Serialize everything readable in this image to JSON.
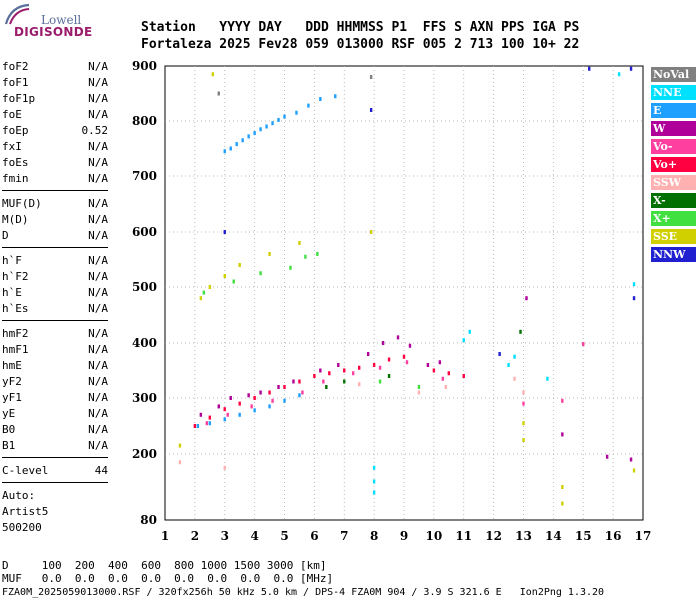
{
  "logo": {
    "top": "Lowell",
    "bottom": "DIGISONDE"
  },
  "header": {
    "line1": "Station   YYYY DAY   DDD HHMMSS P1  FFS S AXN PPS IGA PS",
    "line2": "Fortaleza 2025 Fev28 059 013000 RSF 005 2 713 100 10+ 22"
  },
  "params_group1": [
    {
      "name": "foF2",
      "value": "N/A"
    },
    {
      "name": "foF1",
      "value": "N/A"
    },
    {
      "name": "foF1p",
      "value": "N/A"
    },
    {
      "name": "foE",
      "value": "N/A"
    },
    {
      "name": "foEp",
      "value": "0.52"
    },
    {
      "name": "fxI",
      "value": "N/A"
    },
    {
      "name": "foEs",
      "value": "N/A"
    },
    {
      "name": "fmin",
      "value": "N/A"
    }
  ],
  "params_group2": [
    {
      "name": "MUF(D)",
      "value": "N/A"
    },
    {
      "name": "M(D)",
      "value": "N/A"
    },
    {
      "name": "D",
      "value": "N/A"
    }
  ],
  "params_group3": [
    {
      "name": "h`F",
      "value": "N/A"
    },
    {
      "name": "h`F2",
      "value": "N/A"
    },
    {
      "name": "h`E",
      "value": "N/A"
    },
    {
      "name": "h`Es",
      "value": "N/A"
    }
  ],
  "params_group4": [
    {
      "name": "hmF2",
      "value": "N/A"
    },
    {
      "name": "hmF1",
      "value": "N/A"
    },
    {
      "name": "hmE",
      "value": "N/A"
    },
    {
      "name": "yF2",
      "value": "N/A"
    },
    {
      "name": "yF1",
      "value": "N/A"
    },
    {
      "name": "yE",
      "value": "N/A"
    },
    {
      "name": "B0",
      "value": "N/A"
    },
    {
      "name": "B1",
      "value": "N/A"
    }
  ],
  "clevel": {
    "name": "C-level",
    "value": "44"
  },
  "auto": {
    "line1": "Auto:",
    "line2": "Artist5",
    "line3": "500200"
  },
  "legend": [
    {
      "label": "NoVal",
      "bg": "#808080",
      "fg": "#ffffff"
    },
    {
      "label": "NNE",
      "bg": "#00e0ff",
      "fg": "#ffffff"
    },
    {
      "label": "E",
      "bg": "#1fa0ff",
      "fg": "#ffffff"
    },
    {
      "label": "W",
      "bg": "#b0009a",
      "fg": "#ffffff"
    },
    {
      "label": "Vo-",
      "bg": "#ff3fa0",
      "fg": "#ffffff"
    },
    {
      "label": "Vo+",
      "bg": "#ff0040",
      "fg": "#ffffff"
    },
    {
      "label": "SSW",
      "bg": "#ffb0b0",
      "fg": "#ffffff"
    },
    {
      "label": "X-",
      "bg": "#007000",
      "fg": "#ffffff"
    },
    {
      "label": "X+",
      "bg": "#40e040",
      "fg": "#ffffff"
    },
    {
      "label": "SSE",
      "bg": "#d0d000",
      "fg": "#ffffff"
    },
    {
      "label": "NNW",
      "bg": "#2020d0",
      "fg": "#ffffff"
    }
  ],
  "footer": {
    "d_row": "D     100  200  400  600  800 1000 1500 3000 [km]",
    "muf_row": "MUF   0.0  0.0  0.0  0.0  0.0  0.0  0.0  0.0 [MHz]",
    "file_row": "FZA0M_2025059013000.RSF / 320fx256h 50 kHz 5.0 km / DPS-4 FZA0M 904 / 3.9 S 321.6 E   Ion2Png 1.3.20"
  },
  "chart_data": {
    "type": "scatter",
    "x_ticks": [
      "1",
      "2",
      "3",
      "4",
      "5",
      "6",
      "7",
      "8",
      "9",
      "10",
      "11",
      "12",
      "13",
      "14",
      "15",
      "16",
      "17"
    ],
    "y_ticks": [
      "80",
      "200",
      "300",
      "400",
      "500",
      "600",
      "700",
      "800",
      "900"
    ],
    "xlim": [
      1,
      17
    ],
    "ylim": [
      80,
      900
    ],
    "grid": true,
    "legend_position": "right",
    "series": [
      {
        "name": "E",
        "color": "#1fa0ff",
        "points": [
          [
            3.0,
            745
          ],
          [
            3.2,
            750
          ],
          [
            3.4,
            758
          ],
          [
            3.6,
            765
          ],
          [
            3.8,
            772
          ],
          [
            4.0,
            778
          ],
          [
            4.2,
            785
          ],
          [
            4.4,
            790
          ],
          [
            4.6,
            796
          ],
          [
            4.8,
            802
          ],
          [
            5.0,
            808
          ],
          [
            5.4,
            815
          ],
          [
            5.8,
            828
          ],
          [
            6.2,
            840
          ],
          [
            6.7,
            845
          ],
          [
            2.1,
            250
          ],
          [
            2.5,
            255
          ],
          [
            3.0,
            262
          ],
          [
            3.5,
            270
          ],
          [
            4.0,
            278
          ],
          [
            4.5,
            285
          ],
          [
            5.0,
            295
          ],
          [
            5.5,
            305
          ]
        ]
      },
      {
        "name": "Vo+",
        "color": "#ff0040",
        "points": [
          [
            2.0,
            250
          ],
          [
            2.5,
            265
          ],
          [
            3.0,
            280
          ],
          [
            3.5,
            290
          ],
          [
            4.0,
            300
          ],
          [
            4.5,
            310
          ],
          [
            5.0,
            320
          ],
          [
            5.5,
            330
          ],
          [
            6.0,
            340
          ],
          [
            6.5,
            345
          ],
          [
            7.0,
            350
          ],
          [
            7.5,
            355
          ],
          [
            8.0,
            360
          ],
          [
            8.5,
            370
          ],
          [
            9.0,
            375
          ],
          [
            10.0,
            350
          ],
          [
            10.5,
            345
          ],
          [
            11.0,
            340
          ]
        ]
      },
      {
        "name": "W",
        "color": "#b0009a",
        "points": [
          [
            2.2,
            270
          ],
          [
            2.8,
            285
          ],
          [
            3.2,
            300
          ],
          [
            3.8,
            305
          ],
          [
            4.2,
            310
          ],
          [
            4.8,
            320
          ],
          [
            5.3,
            330
          ],
          [
            6.2,
            350
          ],
          [
            6.8,
            360
          ],
          [
            7.8,
            380
          ],
          [
            8.3,
            400
          ],
          [
            8.8,
            410
          ],
          [
            9.2,
            395
          ],
          [
            9.8,
            360
          ],
          [
            10.2,
            365
          ],
          [
            13.1,
            480
          ],
          [
            14.3,
            235
          ],
          [
            15.8,
            195
          ],
          [
            16.6,
            190
          ]
        ]
      },
      {
        "name": "Vo-",
        "color": "#ff3fa0",
        "points": [
          [
            2.4,
            255
          ],
          [
            3.1,
            270
          ],
          [
            3.9,
            285
          ],
          [
            4.6,
            295
          ],
          [
            5.6,
            310
          ],
          [
            6.3,
            330
          ],
          [
            7.3,
            345
          ],
          [
            8.2,
            355
          ],
          [
            9.1,
            365
          ],
          [
            10.3,
            335
          ],
          [
            13.0,
            290
          ],
          [
            14.3,
            295
          ],
          [
            15.0,
            398
          ]
        ]
      },
      {
        "name": "NNE",
        "color": "#00e0ff",
        "points": [
          [
            8.0,
            150
          ],
          [
            8.0,
            130
          ],
          [
            8.0,
            175
          ],
          [
            11.0,
            405
          ],
          [
            11.2,
            420
          ],
          [
            12.5,
            360
          ],
          [
            12.7,
            375
          ],
          [
            13.8,
            335
          ],
          [
            16.2,
            885
          ],
          [
            16.7,
            505
          ]
        ]
      },
      {
        "name": "SSE",
        "color": "#d0d000",
        "points": [
          [
            1.5,
            215
          ],
          [
            2.6,
            885
          ],
          [
            2.2,
            480
          ],
          [
            2.5,
            500
          ],
          [
            3.0,
            520
          ],
          [
            3.5,
            540
          ],
          [
            4.5,
            560
          ],
          [
            5.5,
            580
          ],
          [
            7.9,
            600
          ],
          [
            13.0,
            255
          ],
          [
            13.0,
            225
          ],
          [
            14.3,
            140
          ],
          [
            14.3,
            110
          ],
          [
            16.7,
            170
          ]
        ]
      },
      {
        "name": "X+",
        "color": "#40e040",
        "points": [
          [
            2.3,
            490
          ],
          [
            3.3,
            510
          ],
          [
            4.2,
            525
          ],
          [
            5.2,
            535
          ],
          [
            5.7,
            555
          ],
          [
            6.1,
            560
          ],
          [
            8.2,
            330
          ],
          [
            9.5,
            320
          ]
        ]
      },
      {
        "name": "X-",
        "color": "#007000",
        "points": [
          [
            6.4,
            320
          ],
          [
            7.0,
            330
          ],
          [
            8.5,
            340
          ],
          [
            12.9,
            420
          ]
        ]
      },
      {
        "name": "SSW",
        "color": "#ffb0b0",
        "points": [
          [
            1.5,
            185
          ],
          [
            3.0,
            175
          ],
          [
            7.5,
            325
          ],
          [
            9.5,
            310
          ],
          [
            10.4,
            320
          ],
          [
            12.7,
            335
          ],
          [
            13.0,
            310
          ]
        ]
      },
      {
        "name": "NNW",
        "color": "#2020d0",
        "points": [
          [
            3.0,
            600
          ],
          [
            7.9,
            820
          ],
          [
            12.2,
            380
          ],
          [
            15.2,
            895
          ],
          [
            16.7,
            480
          ],
          [
            16.6,
            895
          ]
        ]
      },
      {
        "name": "NoVal",
        "color": "#808080",
        "points": [
          [
            2.8,
            850
          ],
          [
            7.9,
            880
          ]
        ]
      }
    ]
  }
}
